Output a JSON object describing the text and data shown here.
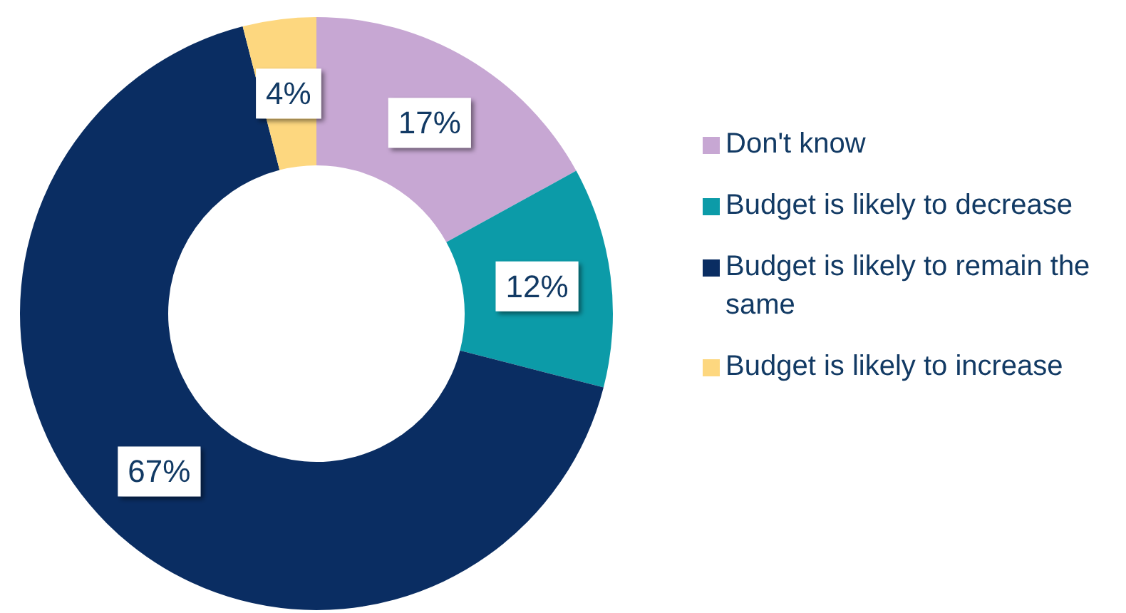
{
  "chart_data": {
    "type": "donut",
    "categories": [
      "Don't know",
      "Budget is likely to decrease",
      "Budget is likely to remain the same",
      "Budget is likely to increase"
    ],
    "values": [
      17,
      12,
      67,
      4
    ],
    "value_labels": [
      "17%",
      "12%",
      "67%",
      "4%"
    ],
    "colors": [
      "#c7a7d3",
      "#0c9ba8",
      "#0a2d62",
      "#fdd77f"
    ],
    "legend": "right"
  }
}
